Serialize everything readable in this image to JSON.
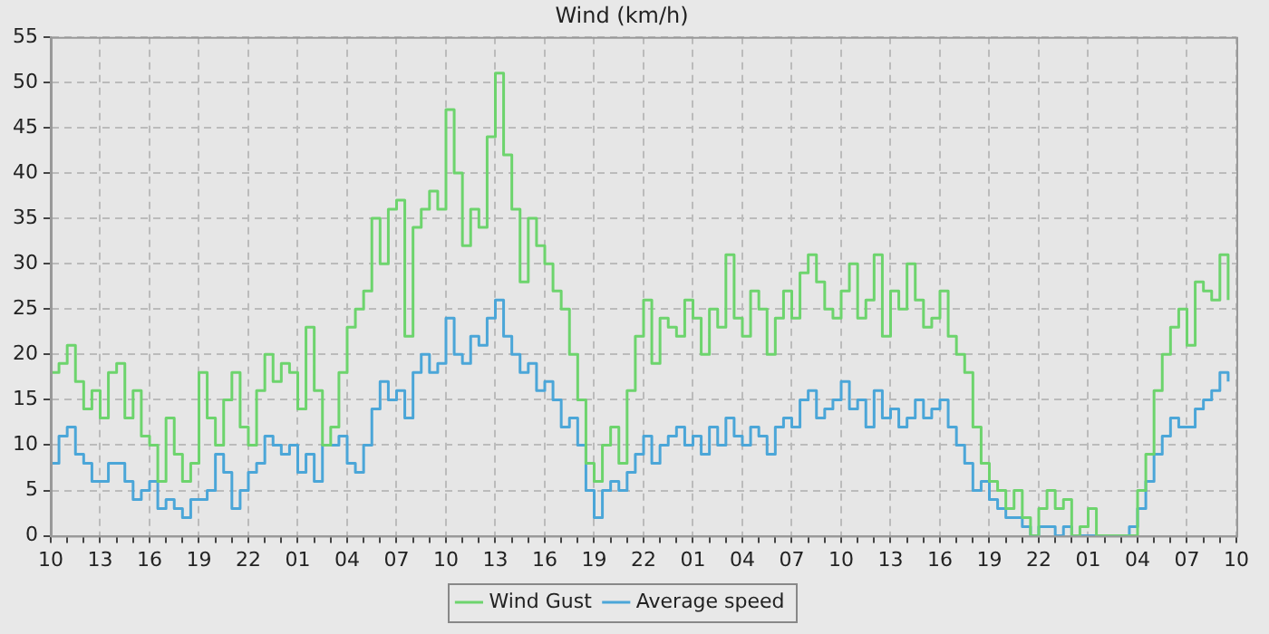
{
  "chart_data": {
    "type": "step",
    "title": "Wind (km/h)",
    "categories": [
      "10",
      null,
      null,
      null,
      null,
      null,
      "13",
      null,
      null,
      null,
      null,
      null,
      "16",
      null,
      null,
      null,
      null,
      null,
      "19",
      null,
      null,
      null,
      null,
      null,
      "22",
      null,
      null,
      null,
      null,
      null,
      "01",
      null,
      null,
      null,
      null,
      null,
      "04",
      null,
      null,
      null,
      null,
      null,
      "07",
      null,
      null,
      null,
      null,
      null,
      "10",
      null,
      null,
      null,
      null,
      null,
      "13",
      null,
      null,
      null,
      null,
      null,
      "16",
      null,
      null,
      null,
      null,
      null,
      "19",
      null,
      null,
      null,
      null,
      null,
      "22",
      null,
      null,
      null,
      null,
      null,
      "01",
      null,
      null,
      null,
      null,
      null,
      "04",
      null,
      null,
      null,
      null,
      null,
      "07",
      null,
      null,
      null,
      null,
      null,
      "10",
      null,
      null,
      null,
      null,
      null,
      "13",
      null,
      null,
      null,
      null,
      null,
      "16",
      null,
      null,
      null,
      null,
      null,
      "19",
      null,
      null,
      null,
      null,
      null,
      "22",
      null,
      null,
      null,
      null,
      null,
      "01",
      null,
      null,
      null,
      null,
      null,
      "04",
      null,
      null,
      null,
      null,
      null,
      "07",
      null,
      null,
      null,
      null,
      null,
      "10"
    ],
    "series": [
      {
        "name": "Wind Gust",
        "color": "#6dd46d",
        "values": [
          18,
          19,
          21,
          17,
          14,
          16,
          13,
          18,
          19,
          13,
          16,
          11,
          10,
          6,
          13,
          9,
          6,
          8,
          18,
          13,
          10,
          15,
          18,
          12,
          10,
          16,
          20,
          17,
          19,
          18,
          14,
          23,
          16,
          10,
          12,
          18,
          23,
          25,
          27,
          35,
          30,
          36,
          37,
          22,
          34,
          36,
          38,
          36,
          47,
          40,
          32,
          36,
          34,
          44,
          51,
          42,
          36,
          28,
          35,
          32,
          30,
          27,
          25,
          20,
          15,
          8,
          6,
          10,
          12,
          8,
          16,
          22,
          26,
          19,
          24,
          23,
          22,
          26,
          24,
          20,
          25,
          23,
          31,
          24,
          22,
          27,
          25,
          20,
          24,
          27,
          24,
          29,
          31,
          28,
          25,
          24,
          27,
          30,
          24,
          26,
          31,
          22,
          27,
          25,
          30,
          26,
          23,
          24,
          27,
          22,
          20,
          18,
          12,
          8,
          6,
          5,
          3,
          5,
          2,
          0,
          3,
          5,
          3,
          4,
          0,
          1,
          3,
          0,
          0,
          0,
          0,
          0,
          5,
          9,
          16,
          20,
          23,
          25,
          21,
          28,
          27,
          26,
          31,
          26,
          null
        ]
      },
      {
        "name": "Average speed",
        "color": "#4ba6d8",
        "values": [
          8,
          11,
          12,
          9,
          8,
          6,
          6,
          8,
          8,
          6,
          4,
          5,
          6,
          3,
          4,
          3,
          2,
          4,
          4,
          5,
          9,
          7,
          3,
          5,
          7,
          8,
          11,
          10,
          9,
          10,
          7,
          9,
          6,
          10,
          10,
          11,
          8,
          7,
          10,
          14,
          17,
          15,
          16,
          13,
          18,
          20,
          18,
          19,
          24,
          20,
          19,
          22,
          21,
          24,
          26,
          22,
          20,
          18,
          19,
          16,
          17,
          15,
          12,
          13,
          10,
          5,
          2,
          5,
          6,
          5,
          7,
          9,
          11,
          8,
          10,
          11,
          12,
          10,
          11,
          9,
          12,
          10,
          13,
          11,
          10,
          12,
          11,
          9,
          12,
          13,
          12,
          15,
          16,
          13,
          14,
          15,
          17,
          14,
          15,
          12,
          16,
          13,
          14,
          12,
          13,
          15,
          13,
          14,
          15,
          12,
          10,
          8,
          5,
          6,
          4,
          3,
          2,
          2,
          1,
          0,
          1,
          1,
          0,
          1,
          0,
          0,
          0,
          0,
          0,
          0,
          0,
          1,
          3,
          6,
          9,
          11,
          13,
          12,
          12,
          14,
          15,
          16,
          18,
          17,
          null
        ]
      }
    ],
    "ylim": [
      0,
      55
    ],
    "yticks": [
      0,
      5,
      10,
      15,
      20,
      25,
      30,
      35,
      40,
      45,
      50,
      55
    ],
    "grid": true,
    "legend": "bottom",
    "line_style": "solid",
    "marker": "none"
  }
}
